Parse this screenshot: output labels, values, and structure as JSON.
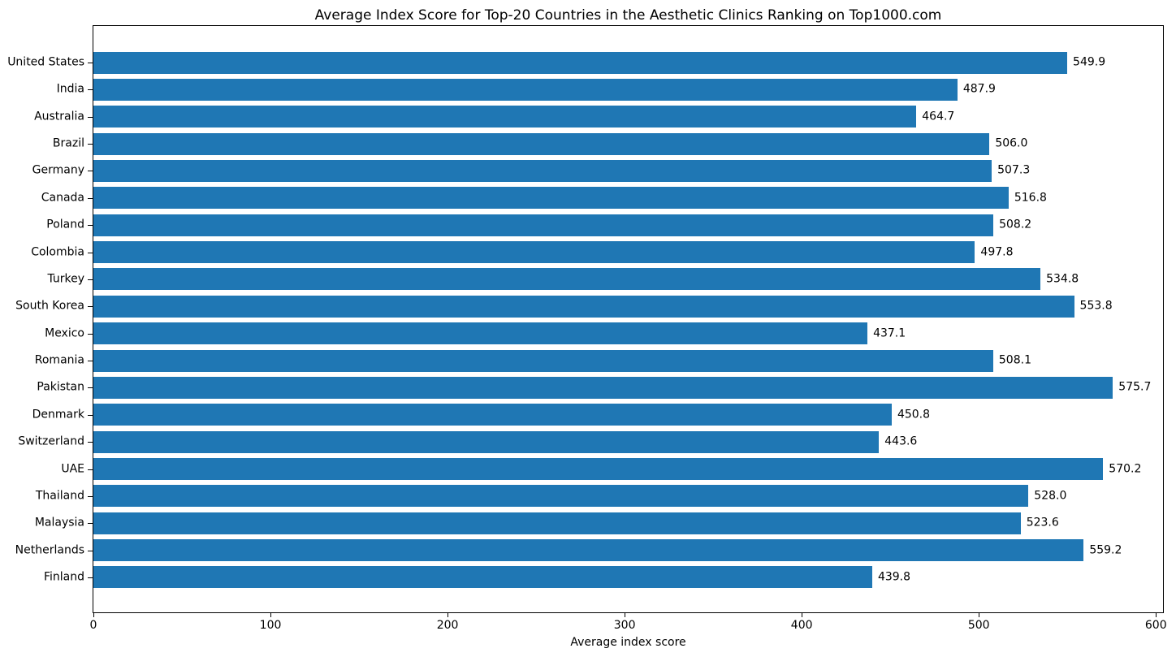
{
  "figure": {
    "background": "#ffffff",
    "text_color": "#000000"
  },
  "chart_data": {
    "type": "bar",
    "orientation": "horizontal",
    "title": "Average Index Score for Top-20 Countries in the Aesthetic Clinics Ranking on Top1000.com",
    "xlabel": "Average index score",
    "ylabel": "",
    "categories": [
      "United States",
      "India",
      "Australia",
      "Brazil",
      "Germany",
      "Canada",
      "Poland",
      "Colombia",
      "Turkey",
      "South Korea",
      "Mexico",
      "Romania",
      "Pakistan",
      "Denmark",
      "Switzerland",
      "UAE",
      "Thailand",
      "Malaysia",
      "Netherlands",
      "Finland"
    ],
    "values": [
      549.9,
      487.9,
      464.7,
      506.0,
      507.3,
      516.8,
      508.2,
      497.8,
      534.8,
      553.8,
      437.1,
      508.1,
      575.7,
      450.8,
      443.6,
      570.2,
      528.0,
      523.6,
      559.2,
      439.8
    ],
    "value_labels": [
      "549.9",
      "487.9",
      "464.7",
      "506.0",
      "507.3",
      "516.8",
      "508.2",
      "497.8",
      "534.8",
      "553.8",
      "437.1",
      "508.1",
      "575.7",
      "450.8",
      "443.6",
      "570.2",
      "528.0",
      "523.6",
      "559.2",
      "439.8"
    ],
    "xticks": [
      0,
      100,
      200,
      300,
      400,
      500,
      600
    ],
    "xlim": [
      0,
      604
    ],
    "bar_color": "#1f77b4",
    "grid": false,
    "legend": "none"
  }
}
